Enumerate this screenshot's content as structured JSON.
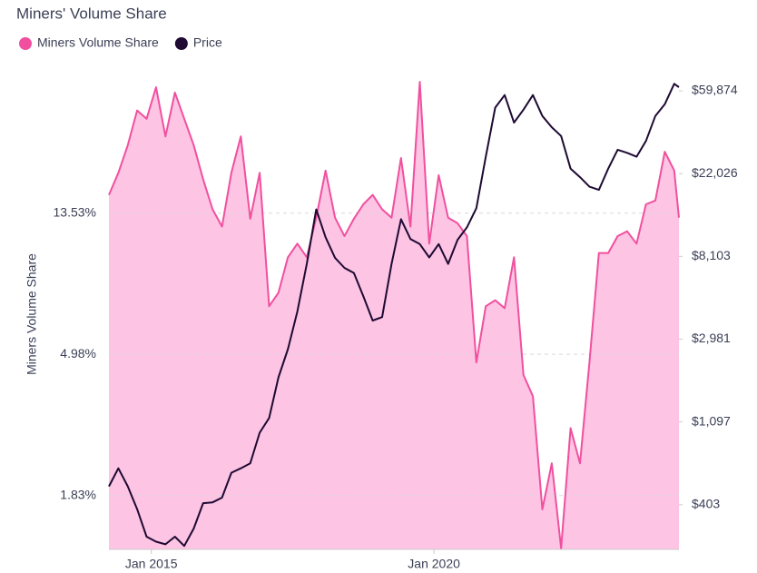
{
  "chart_data": {
    "type": "line",
    "title": "Miners' Volume Share",
    "y_label": "Miners Volume Share",
    "x": [
      "2014-04",
      "2014-06",
      "2014-08",
      "2014-10",
      "2014-12",
      "2015-02",
      "2015-04",
      "2015-06",
      "2015-08",
      "2015-10",
      "2015-12",
      "2016-02",
      "2016-04",
      "2016-06",
      "2016-08",
      "2016-10",
      "2016-12",
      "2017-02",
      "2017-04",
      "2017-06",
      "2017-08",
      "2017-10",
      "2017-12",
      "2018-02",
      "2018-04",
      "2018-06",
      "2018-08",
      "2018-10",
      "2018-12",
      "2019-02",
      "2019-04",
      "2019-06",
      "2019-08",
      "2019-10",
      "2019-12",
      "2020-02",
      "2020-04",
      "2020-06",
      "2020-08",
      "2020-10",
      "2020-12",
      "2021-02",
      "2021-04",
      "2021-06",
      "2021-08",
      "2021-10",
      "2021-12",
      "2022-02",
      "2022-04",
      "2022-06",
      "2022-08",
      "2022-10",
      "2022-12",
      "2023-02",
      "2023-04",
      "2023-06",
      "2023-08",
      "2023-10",
      "2023-12",
      "2024-02",
      "2024-04",
      "2024-05"
    ],
    "series": [
      {
        "name": "Miners Volume Share",
        "color": "#f0509f",
        "fill": "#fdc4e3",
        "axis": "y",
        "values": [
          15.4,
          18.0,
          21.9,
          28.0,
          26.4,
          33.0,
          23.3,
          31.8,
          26.4,
          21.9,
          17.2,
          13.9,
          12.3,
          18.0,
          23.3,
          13.0,
          18.0,
          7.0,
          7.7,
          9.9,
          10.9,
          9.9,
          13.1,
          18.3,
          13.1,
          11.5,
          13.0,
          14.4,
          15.4,
          13.9,
          13.1,
          20.0,
          12.3,
          34.3,
          10.9,
          17.7,
          13.1,
          12.6,
          11.5,
          4.7,
          7.0,
          7.3,
          6.9,
          9.9,
          4.3,
          3.7,
          1.66,
          2.3,
          1.26,
          2.95,
          2.3,
          4.7,
          10.2,
          10.2,
          11.5,
          11.9,
          10.9,
          14.4,
          14.8,
          20.9,
          18.3,
          13.1
        ]
      },
      {
        "name": "Price",
        "color": "#1e0a33",
        "axis": "y2",
        "values": [
          503,
          626,
          503,
          382,
          274,
          258,
          250,
          274,
          245,
          302,
          411,
          415,
          439,
          593,
          626,
          665,
          962,
          1150,
          1880,
          2640,
          4160,
          7400,
          14300,
          10200,
          7960,
          7050,
          6630,
          5000,
          3730,
          3890,
          7400,
          12700,
          10000,
          9400,
          8000,
          9400,
          7400,
          9900,
          11500,
          14500,
          27000,
          48900,
          56900,
          40800,
          47700,
          56900,
          44200,
          38600,
          34700,
          23400,
          21100,
          18800,
          18100,
          23400,
          29400,
          28300,
          27000,
          32700,
          44200,
          50900,
          65200,
          62600
        ]
      }
    ],
    "xlim": [
      "2014-04",
      "2024-05"
    ],
    "xticks": [
      {
        "value": "2015-01",
        "label": "Jan 2015"
      },
      {
        "value": "2020-01",
        "label": "Jan 2020"
      }
    ],
    "ylim": [
      1.25,
      36.6
    ],
    "log_y": true,
    "yticks": [
      {
        "value": 1.83,
        "label": "1.83%"
      },
      {
        "value": 4.98,
        "label": "4.98%"
      },
      {
        "value": 13.53,
        "label": "13.53%"
      }
    ],
    "y2lim": [
      235,
      74600
    ],
    "log_y2": true,
    "y2ticks": [
      {
        "value": 403,
        "label": "$403"
      },
      {
        "value": 1097,
        "label": "$1,097"
      },
      {
        "value": 2981,
        "label": "$2,981"
      },
      {
        "value": 8103,
        "label": "$8,103"
      },
      {
        "value": 22026,
        "label": "$22,026"
      },
      {
        "value": 59874,
        "label": "$59,874"
      }
    ],
    "grid": true,
    "legend": "top-left"
  }
}
